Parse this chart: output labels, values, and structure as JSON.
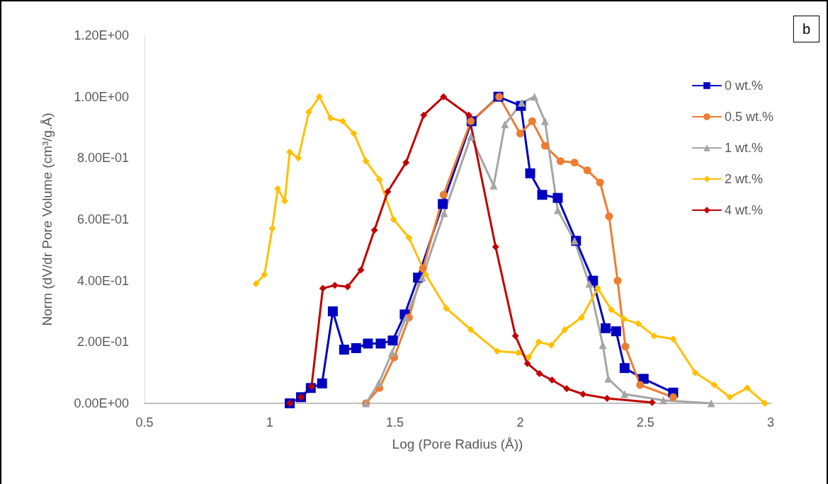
{
  "chart_data": {
    "type": "line",
    "xlabel": "Log (Pore Radius (Å))",
    "ylabel": "Norm (dV/dr Pore Volume (cm³/g.Å)",
    "annotations": [
      "b"
    ],
    "xlim": [
      0.5,
      3
    ],
    "xticks": [
      0.5,
      1,
      1.5,
      2,
      2.5,
      3
    ],
    "ylim": [
      0,
      1.2
    ],
    "yticks": [
      {
        "value": 0,
        "label": "0.00E+00"
      },
      {
        "value": 0.2,
        "label": "2.00E-01"
      },
      {
        "value": 0.4,
        "label": "4.00E-01"
      },
      {
        "value": 0.6,
        "label": "6.00E-01"
      },
      {
        "value": 0.8,
        "label": "8.00E-01"
      },
      {
        "value": 1.0,
        "label": "1.00E+00"
      },
      {
        "value": 1.2,
        "label": "1.20E+00"
      }
    ],
    "grid": false,
    "legend": "top right",
    "line_style": "solid",
    "series": [
      {
        "name": "0 wt.%",
        "color": "#0000c0",
        "marker": "square",
        "x": [
          1.08,
          1.125,
          1.164,
          1.209,
          1.252,
          1.297,
          1.345,
          1.392,
          1.443,
          1.491,
          1.539,
          1.592,
          1.691,
          1.806,
          1.913,
          2.003,
          2.04,
          2.088,
          2.15,
          2.223,
          2.291,
          2.341,
          2.383,
          2.417,
          2.493,
          2.611
        ],
        "values": [
          0,
          0.02,
          0.05,
          0.065,
          0.3,
          0.175,
          0.18,
          0.195,
          0.195,
          0.205,
          0.29,
          0.41,
          0.65,
          0.92,
          1.0,
          0.97,
          0.75,
          0.68,
          0.67,
          0.53,
          0.4,
          0.245,
          0.235,
          0.115,
          0.08,
          0.035
        ]
      },
      {
        "name": "0.5 wt.%",
        "color": "#ed7d31",
        "marker": "circle",
        "x": [
          1.384,
          1.438,
          1.497,
          1.556,
          1.612,
          1.694,
          1.803,
          1.916,
          2.0,
          2.048,
          2.099,
          2.161,
          2.217,
          2.268,
          2.319,
          2.355,
          2.389,
          2.42,
          2.479,
          2.611
        ],
        "values": [
          0,
          0.05,
          0.15,
          0.28,
          0.44,
          0.68,
          0.92,
          1.0,
          0.88,
          0.92,
          0.84,
          0.79,
          0.785,
          0.76,
          0.72,
          0.61,
          0.4,
          0.185,
          0.06,
          0.02
        ]
      },
      {
        "name": "1 wt.%",
        "color": "#a5a5a5",
        "marker": "triangle",
        "x": [
          1.384,
          1.435,
          1.488,
          1.544,
          1.609,
          1.696,
          1.803,
          1.894,
          1.939,
          2.006,
          2.057,
          2.099,
          2.15,
          2.217,
          2.276,
          2.33,
          2.352,
          2.417,
          2.572,
          2.763
        ],
        "values": [
          0,
          0.065,
          0.165,
          0.28,
          0.41,
          0.62,
          0.87,
          0.71,
          0.91,
          0.98,
          1.0,
          0.92,
          0.63,
          0.53,
          0.39,
          0.19,
          0.08,
          0.03,
          0.01,
          0
        ]
      },
      {
        "name": "2 wt.%",
        "color": "#ffc000",
        "marker": "diamond",
        "x": [
          0.945,
          0.979,
          1.01,
          1.032,
          1.06,
          1.08,
          1.114,
          1.156,
          1.198,
          1.243,
          1.291,
          1.336,
          1.384,
          1.438,
          1.494,
          1.556,
          1.623,
          1.705,
          1.803,
          1.908,
          1.992,
          2.034,
          2.074,
          2.124,
          2.178,
          2.245,
          2.31,
          2.364,
          2.414,
          2.471,
          2.535,
          2.611,
          2.699,
          2.775,
          2.837,
          2.907,
          2.977
        ],
        "values": [
          0.39,
          0.42,
          0.57,
          0.7,
          0.66,
          0.82,
          0.8,
          0.95,
          1.0,
          0.93,
          0.92,
          0.88,
          0.79,
          0.73,
          0.6,
          0.54,
          0.42,
          0.31,
          0.24,
          0.17,
          0.165,
          0.15,
          0.2,
          0.19,
          0.24,
          0.28,
          0.375,
          0.305,
          0.275,
          0.26,
          0.22,
          0.21,
          0.1,
          0.06,
          0.02,
          0.05,
          0
        ]
      },
      {
        "name": "4 wt.%",
        "color": "#c00000",
        "marker": "diamond",
        "x": [
          1.08,
          1.125,
          1.167,
          1.212,
          1.26,
          1.311,
          1.364,
          1.418,
          1.471,
          1.544,
          1.615,
          1.694,
          1.795,
          1.902,
          1.981,
          2.029,
          2.077,
          2.127,
          2.186,
          2.251,
          2.347,
          2.527
        ],
        "values": [
          0,
          0.02,
          0.055,
          0.375,
          0.385,
          0.38,
          0.435,
          0.565,
          0.69,
          0.785,
          0.94,
          1.0,
          0.94,
          0.51,
          0.22,
          0.13,
          0.097,
          0.076,
          0.048,
          0.03,
          0.016,
          0.003
        ]
      }
    ]
  }
}
